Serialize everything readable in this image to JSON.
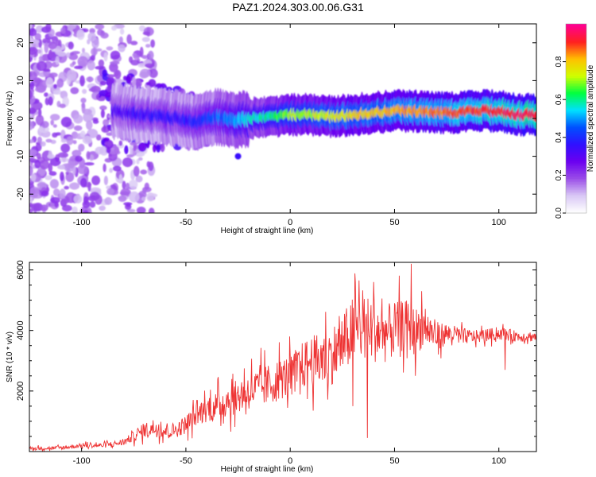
{
  "page_title": "PAZ1.2024.303.00.06.G31",
  "chart_data": [
    {
      "type": "heatmap",
      "xlabel": "Height of straight line (km)",
      "ylabel": "Frequency (Hz)",
      "xlim": [
        -125,
        118
      ],
      "ylim": [
        -25,
        25
      ],
      "xticks": [
        -100,
        -50,
        0,
        50,
        100
      ],
      "yticks": [
        -20,
        -10,
        0,
        10,
        20
      ],
      "colorbar": {
        "label": "Normalized spectral amplitude",
        "range": [
          0,
          1
        ],
        "ticks": [
          "0.0",
          "0.2",
          "0.4",
          "0.6",
          "0.8"
        ],
        "tick_values": [
          0,
          0.2,
          0.4,
          0.6,
          0.8
        ],
        "colormap": [
          "#ffffff",
          "#d9c8f5",
          "#9a4de8",
          "#6b00f0",
          "#3010ff",
          "#0050ff",
          "#00e0ff",
          "#00ff40",
          "#d0ff00",
          "#ffc000",
          "#ff2020",
          "#ff0090"
        ]
      },
      "ridge": {
        "x": [
          -85,
          -70,
          -55,
          -45,
          -35,
          -28,
          -20,
          -10,
          0,
          10,
          20,
          30,
          40,
          50,
          60,
          70,
          80,
          90,
          100,
          110,
          118
        ],
        "freq_hz": [
          2,
          1,
          0,
          -1,
          0.5,
          -0.5,
          0,
          0.5,
          1,
          1,
          0.5,
          1,
          1.5,
          2,
          2,
          1.5,
          1.5,
          2,
          2,
          1,
          1
        ],
        "amplitude": [
          0.3,
          0.35,
          0.35,
          0.4,
          0.45,
          0.5,
          0.55,
          0.6,
          0.7,
          0.72,
          0.75,
          0.78,
          0.8,
          0.82,
          0.85,
          0.85,
          0.88,
          0.9,
          0.92,
          0.95,
          0.95
        ]
      },
      "grid": false
    },
    {
      "type": "line",
      "xlabel": "Height of straight line (km)",
      "ylabel": "SNR (10 * v/v)",
      "xlim": [
        -125,
        118
      ],
      "ylim": [
        0,
        6250
      ],
      "xticks": [
        -100,
        -50,
        0,
        50,
        100
      ],
      "yticks": [
        2000,
        4000,
        6000
      ],
      "line_color": "#ee3333",
      "series": [
        {
          "x": [
            -125,
            -110,
            -100,
            -90,
            -80,
            -75,
            -70,
            -65,
            -60,
            -55,
            -50,
            -45,
            -40,
            -35,
            -30,
            -25,
            -20,
            -15,
            -10,
            -5,
            0,
            5,
            10,
            15,
            20,
            25,
            30,
            35,
            40,
            45,
            50,
            55,
            60,
            65,
            70,
            75,
            80,
            85,
            90,
            95,
            100,
            105,
            110,
            118
          ],
          "y": [
            100,
            120,
            200,
            200,
            300,
            500,
            700,
            800,
            700,
            700,
            900,
            1200,
            1400,
            1500,
            1700,
            1800,
            2000,
            2100,
            2200,
            2400,
            2500,
            2800,
            3000,
            3000,
            3200,
            3500,
            4000,
            4100,
            4000,
            3900,
            4000,
            4200,
            4000,
            4100,
            3800,
            3900,
            3850,
            3800,
            3800,
            3850,
            3900,
            3850,
            3800,
            3800
          ],
          "noise": [
            80,
            90,
            100,
            120,
            150,
            250,
            350,
            450,
            400,
            350,
            450,
            500,
            600,
            700,
            800,
            800,
            900,
            950,
            1000,
            1000,
            1000,
            1100,
            1200,
            1300,
            1400,
            1500,
            1600,
            1600,
            1500,
            1400,
            1300,
            1200,
            1100,
            900,
            700,
            500,
            400,
            350,
            300,
            300,
            300,
            280,
            250,
            250
          ],
          "peaks": [
            [
              33,
              5650
            ],
            [
              40,
              5600
            ],
            [
              45,
              5450
            ],
            [
              58,
              6200
            ],
            [
              63,
              5300
            ],
            [
              45,
              3500
            ],
            [
              60,
              2500
            ],
            [
              50,
              4900
            ],
            [
              23,
              4050
            ],
            [
              103,
              2700
            ],
            [
              30,
              1500
            ],
            [
              37,
              450
            ]
          ]
        }
      ],
      "grid": false
    }
  ]
}
